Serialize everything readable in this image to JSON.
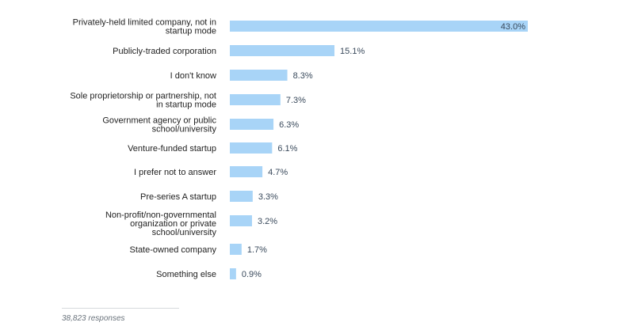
{
  "chart_data": {
    "type": "bar",
    "orientation": "horizontal",
    "categories": [
      [
        "Privately-held limited company, not in",
        "startup mode"
      ],
      [
        "Publicly-traded corporation"
      ],
      [
        "I don't know"
      ],
      [
        "Sole proprietorship or partnership, not",
        "in startup mode"
      ],
      [
        "Government agency or public",
        "school/university"
      ],
      [
        "Venture-funded startup"
      ],
      [
        "I prefer not to answer"
      ],
      [
        "Pre-series A startup"
      ],
      [
        "Non-profit/non-governmental",
        "organization or private",
        "school/university"
      ],
      [
        "State-owned company"
      ],
      [
        "Something else"
      ]
    ],
    "values": [
      43.0,
      15.1,
      8.3,
      7.3,
      6.3,
      6.1,
      4.7,
      3.3,
      3.2,
      1.7,
      0.9
    ],
    "value_labels": [
      "43.0%",
      "15.1%",
      "8.3%",
      "7.3%",
      "6.3%",
      "6.1%",
      "4.7%",
      "3.3%",
      "3.2%",
      "1.7%",
      "0.9%"
    ],
    "xlim": [
      0,
      43.0
    ],
    "bar_color": "#a8d4f7",
    "value_label_color": "#3a4a5c",
    "grid": false,
    "legend": "none"
  },
  "footer": {
    "responses": "38,823 responses"
  }
}
